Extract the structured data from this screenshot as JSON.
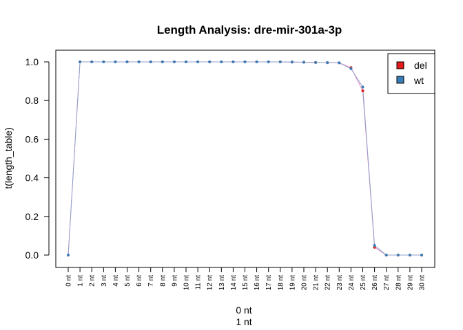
{
  "chart_data": {
    "type": "line",
    "title": "Length Analysis: dre-mir-301a-3p",
    "xlabel_lines": [
      "0 nt",
      "1 nt"
    ],
    "ylabel": "t(length_table)",
    "categories": [
      "0 nt",
      "1 nt",
      "2 nt",
      "3 nt",
      "4 nt",
      "5 nt",
      "6 nt",
      "7 nt",
      "8 nt",
      "9 nt",
      "10 nt",
      "11 nt",
      "12 nt",
      "13 nt",
      "14 nt",
      "15 nt",
      "16 nt",
      "17 nt",
      "18 nt",
      "19 nt",
      "20 nt",
      "21 nt",
      "22 nt",
      "23 nt",
      "24 nt",
      "25 nt",
      "26 nt",
      "27 nt",
      "28 nt",
      "29 nt",
      "30 nt"
    ],
    "ylim": [
      0.0,
      1.0
    ],
    "yticks": [
      {
        "value": 0.0,
        "label": "0.0"
      },
      {
        "value": 0.2,
        "label": "0.2"
      },
      {
        "value": 0.4,
        "label": "0.4"
      },
      {
        "value": 0.6,
        "label": "0.6"
      },
      {
        "value": 0.8,
        "label": "0.8"
      },
      {
        "value": 1.0,
        "label": "1.0"
      }
    ],
    "grid": false,
    "legend_position": "top-right",
    "series": [
      {
        "name": "del",
        "color": "#E41A1C",
        "line_color": "#E78AC3",
        "values": [
          0.0,
          1.0,
          1.0,
          1.0,
          1.0,
          1.0,
          1.0,
          1.0,
          1.0,
          1.0,
          1.0,
          1.0,
          1.0,
          1.0,
          1.0,
          1.0,
          1.0,
          1.0,
          1.0,
          0.999,
          0.998,
          0.997,
          0.996,
          0.995,
          0.97,
          0.85,
          0.04,
          0.0,
          0.0,
          0.0,
          0.0
        ]
      },
      {
        "name": "wt",
        "color": "#377EB8",
        "line_color": "#8DA0CB",
        "values": [
          0.0,
          1.0,
          1.0,
          1.0,
          1.0,
          1.0,
          1.0,
          1.0,
          1.0,
          1.0,
          1.0,
          1.0,
          1.0,
          1.0,
          1.0,
          1.0,
          1.0,
          1.0,
          1.0,
          0.999,
          0.998,
          0.997,
          0.996,
          0.995,
          0.965,
          0.87,
          0.05,
          0.0,
          0.0,
          0.0,
          0.0
        ]
      }
    ]
  }
}
